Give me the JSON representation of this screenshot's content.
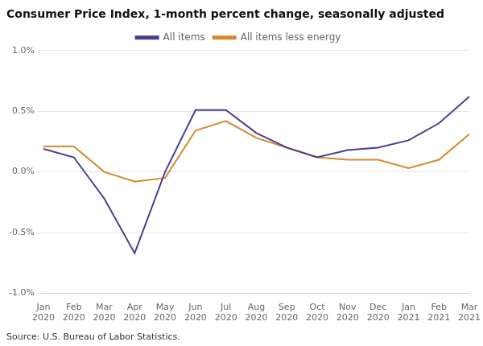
{
  "chart_data": {
    "type": "line",
    "title": "Consumer Price Index, 1-month percent change, seasonally adjusted",
    "annotations": [
      "Source: U.S. Bureau of Labor Statistics."
    ],
    "categories": [
      "Jan\n2020",
      "Feb\n2020",
      "Mar\n2020",
      "Apr\n2020",
      "May\n2020",
      "Jun\n2020",
      "Jul\n2020",
      "Aug\n2020",
      "Sep\n2020",
      "Oct\n2020",
      "Nov\n2020",
      "Dec\n2020",
      "Jan\n2021",
      "Feb\n2021",
      "Mar\n2021"
    ],
    "series": [
      {
        "name": "All items",
        "color": "#4b3d8f",
        "values": [
          0.19,
          0.12,
          -0.22,
          -0.67,
          0.0,
          0.51,
          0.51,
          0.32,
          0.2,
          0.12,
          0.18,
          0.2,
          0.26,
          0.4,
          0.62
        ]
      },
      {
        "name": "All items less energy",
        "color": "#d48a2e",
        "values": [
          0.21,
          0.21,
          0.0,
          -0.08,
          -0.05,
          0.34,
          0.42,
          0.28,
          0.2,
          0.12,
          0.1,
          0.1,
          0.03,
          0.1,
          0.31
        ]
      }
    ],
    "ylim": [
      -1.0,
      1.0
    ],
    "yticks": [
      {
        "value": -1.0,
        "label": "-1.0%"
      },
      {
        "value": -0.5,
        "label": "-0.5%"
      },
      {
        "value": 0.0,
        "label": "0.0%"
      },
      {
        "value": 0.5,
        "label": "0.5%"
      },
      {
        "value": 1.0,
        "label": "1.0%"
      }
    ],
    "grid": true,
    "legend": "top"
  }
}
